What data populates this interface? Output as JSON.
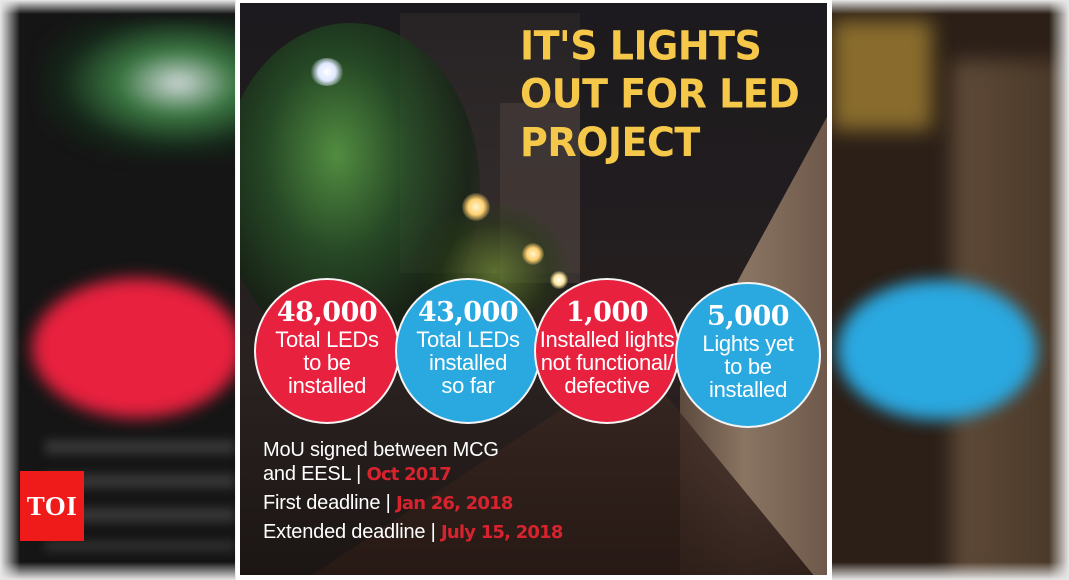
{
  "infographic": {
    "title_lines": [
      "IT'S LIGHTS",
      "OUT FOR LED",
      "PROJECT"
    ],
    "stats": [
      {
        "value": "48,000",
        "label_lines": [
          "Total LEDs",
          "to be",
          "installed"
        ],
        "color": "#e8213f"
      },
      {
        "value": "43,000",
        "label_lines": [
          "Total LEDs",
          "installed",
          "so far"
        ],
        "color": "#2aa8e0"
      },
      {
        "value": "1,000",
        "label_lines": [
          "Installed lights",
          "not functional/",
          "defective"
        ],
        "color": "#e8213f"
      },
      {
        "value": "5,000",
        "label_lines": [
          "Lights yet",
          "to be",
          "installed"
        ],
        "color": "#2aa8e0"
      }
    ],
    "timeline": [
      {
        "text_lines": [
          "MoU signed between MCG",
          "and EESL | "
        ],
        "date": "Oct 2017"
      },
      {
        "text": "First deadline | ",
        "date": "Jan 26, 2018"
      },
      {
        "text": "Extended deadline | ",
        "date": "July 15, 2018"
      }
    ]
  },
  "logo": {
    "text": "TOI"
  },
  "colors": {
    "title_yellow": "#f5c84a",
    "stat_red": "#e8213f",
    "stat_blue": "#2aa8e0",
    "date_red": "#d8232f",
    "logo_red": "#ef1b1b"
  }
}
